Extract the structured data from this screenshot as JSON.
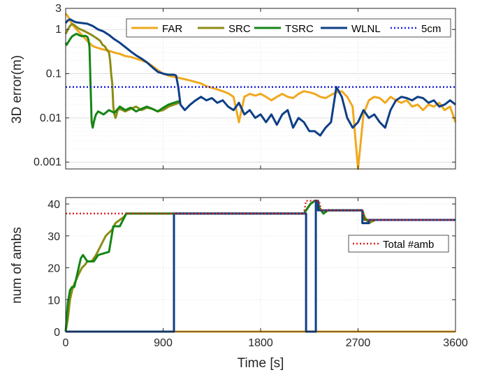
{
  "colors": {
    "FAR": "#f0a81e",
    "SRC": "#8c8c14",
    "TSRC": "#158515",
    "WLNL": "#0e3f86",
    "ref_5cm": "#1f1fe0",
    "total_amb": "#e02020"
  },
  "chart_data": [
    {
      "type": "line",
      "yscale": "log",
      "ylabel": "3D error(m)",
      "xlim": [
        0,
        3600
      ],
      "ylim": [
        0.0007,
        3
      ],
      "yticks": [
        0.001,
        0.01,
        0.1,
        1,
        3
      ],
      "ytick_labels": [
        "0.001",
        "0.01",
        "0.1",
        "1",
        "3"
      ],
      "xticks": [
        0,
        900,
        1800,
        2700,
        3600
      ],
      "grid": true,
      "legend": {
        "placement": "top",
        "orientation": "horizontal",
        "entries": [
          "FAR",
          "SRC",
          "TSRC",
          "WLNL",
          "5cm"
        ]
      },
      "series": [
        {
          "name": "FAR",
          "style": "solid",
          "x": [
            0,
            20,
            40,
            60,
            100,
            150,
            200,
            250,
            300,
            350,
            400,
            450,
            500,
            550,
            600,
            650,
            700,
            750,
            800,
            850,
            900,
            950,
            1000,
            1050,
            1100,
            1150,
            1200,
            1250,
            1300,
            1350,
            1400,
            1450,
            1500,
            1550,
            1600,
            1650,
            1700,
            1750,
            1800,
            1850,
            1900,
            1950,
            2000,
            2050,
            2100,
            2150,
            2200,
            2250,
            2300,
            2350,
            2400,
            2450,
            2500,
            2550,
            2600,
            2650,
            2700,
            2750,
            2800,
            2850,
            2900,
            2950,
            3000,
            3050,
            3100,
            3150,
            3200,
            3250,
            3300,
            3350,
            3400,
            3450,
            3500,
            3550,
            3600
          ],
          "y": [
            2.3,
            2.0,
            1.6,
            1.3,
            1.0,
            0.75,
            0.55,
            0.42,
            0.38,
            0.35,
            0.33,
            0.3,
            0.28,
            0.25,
            0.24,
            0.22,
            0.2,
            0.18,
            0.15,
            0.12,
            0.1,
            0.09,
            0.085,
            0.08,
            0.075,
            0.07,
            0.065,
            0.06,
            0.052,
            0.048,
            0.044,
            0.04,
            0.036,
            0.03,
            0.008,
            0.03,
            0.035,
            0.032,
            0.035,
            0.03,
            0.025,
            0.03,
            0.035,
            0.03,
            0.028,
            0.035,
            0.04,
            0.038,
            0.035,
            0.03,
            0.028,
            0.033,
            0.038,
            0.04,
            0.03,
            0.018,
            0.0007,
            0.012,
            0.025,
            0.03,
            0.028,
            0.022,
            0.03,
            0.025,
            0.022,
            0.025,
            0.018,
            0.02,
            0.015,
            0.02,
            0.018,
            0.022,
            0.015,
            0.018,
            0.008
          ]
        },
        {
          "name": "SRC",
          "style": "solid",
          "x": [
            0,
            20,
            40,
            60,
            80,
            120,
            160,
            200,
            240,
            280,
            300,
            320,
            340,
            360,
            380,
            400,
            410,
            420,
            430,
            440,
            450,
            460,
            470,
            480,
            500,
            550,
            600,
            650,
            700,
            750,
            800,
            850,
            900,
            950,
            1000,
            1050
          ],
          "y": [
            0.8,
            1.0,
            1.2,
            1.35,
            1.25,
            1.05,
            0.95,
            0.85,
            0.75,
            0.65,
            0.6,
            0.55,
            0.45,
            0.42,
            0.35,
            0.3,
            0.2,
            0.1,
            0.06,
            0.018,
            0.012,
            0.01,
            0.012,
            0.015,
            0.016,
            0.014,
            0.016,
            0.018,
            0.015,
            0.017,
            0.016,
            0.014,
            0.015,
            0.018,
            0.02,
            0.022
          ]
        },
        {
          "name": "TSRC",
          "style": "solid",
          "x": [
            0,
            10,
            20,
            40,
            60,
            80,
            100,
            120,
            150,
            180,
            200,
            210,
            220,
            230,
            240,
            250,
            260,
            270,
            280,
            300,
            350,
            400,
            450,
            500,
            550,
            600,
            650,
            700,
            750,
            800,
            850,
            900,
            950,
            1000,
            1050
          ],
          "y": [
            0.5,
            0.45,
            0.5,
            0.6,
            0.7,
            0.75,
            0.8,
            0.75,
            0.7,
            0.72,
            0.68,
            0.6,
            0.4,
            0.05,
            0.008,
            0.006,
            0.008,
            0.01,
            0.012,
            0.014,
            0.012,
            0.015,
            0.013,
            0.018,
            0.015,
            0.017,
            0.014,
            0.016,
            0.018,
            0.016,
            0.014,
            0.017,
            0.02,
            0.022,
            0.024
          ]
        },
        {
          "name": "WLNL",
          "style": "solid",
          "x": [
            0,
            20,
            40,
            60,
            80,
            100,
            150,
            200,
            250,
            300,
            350,
            400,
            450,
            500,
            550,
            600,
            650,
            700,
            750,
            800,
            850,
            900,
            950,
            1000,
            1020,
            1040,
            1060,
            1100,
            1150,
            1200,
            1250,
            1300,
            1350,
            1400,
            1450,
            1500,
            1550,
            1600,
            1650,
            1700,
            1750,
            1800,
            1850,
            1900,
            1950,
            2000,
            2050,
            2100,
            2150,
            2200,
            2250,
            2300,
            2350,
            2400,
            2450,
            2500,
            2550,
            2600,
            2650,
            2700,
            2750,
            2800,
            2850,
            2900,
            2950,
            3000,
            3050,
            3100,
            3150,
            3200,
            3250,
            3300,
            3350,
            3400,
            3450,
            3500,
            3550,
            3600
          ],
          "y": [
            1.4,
            1.6,
            1.7,
            1.6,
            1.5,
            1.45,
            1.4,
            1.35,
            1.2,
            1.0,
            0.9,
            0.75,
            0.6,
            0.5,
            0.4,
            0.32,
            0.26,
            0.22,
            0.18,
            0.14,
            0.11,
            0.1,
            0.095,
            0.095,
            0.09,
            0.05,
            0.02,
            0.015,
            0.02,
            0.025,
            0.03,
            0.025,
            0.028,
            0.022,
            0.025,
            0.018,
            0.015,
            0.022,
            0.012,
            0.015,
            0.01,
            0.012,
            0.008,
            0.012,
            0.007,
            0.012,
            0.015,
            0.006,
            0.01,
            0.008,
            0.005,
            0.005,
            0.004,
            0.006,
            0.008,
            0.05,
            0.03,
            0.01,
            0.006,
            0.008,
            0.015,
            0.01,
            0.012,
            0.008,
            0.006,
            0.015,
            0.025,
            0.03,
            0.028,
            0.025,
            0.03,
            0.028,
            0.022,
            0.025,
            0.018,
            0.02,
            0.025,
            0.02
          ]
        },
        {
          "name": "5cm",
          "style": "dotted",
          "x": [
            0,
            3600
          ],
          "y": [
            0.05,
            0.05
          ]
        }
      ]
    },
    {
      "type": "line",
      "ylabel": "num of ambs",
      "xlabel": "Time [s]",
      "xlim": [
        0,
        3600
      ],
      "ylim": [
        0,
        42
      ],
      "yticks": [
        0,
        10,
        20,
        30,
        40
      ],
      "xticks": [
        0,
        900,
        1800,
        2700,
        3600
      ],
      "grid": true,
      "legend": {
        "placement": "right",
        "entries": [
          "Total #amb"
        ]
      },
      "series": [
        {
          "name": "FAR",
          "x": [
            0,
            3600
          ],
          "y": [
            0,
            0
          ]
        },
        {
          "name": "SRC",
          "x": [
            0,
            20,
            40,
            60,
            80,
            120,
            150,
            180,
            200,
            240,
            280,
            310,
            340,
            370,
            400,
            430,
            460,
            500,
            540,
            560,
            600,
            700,
            900,
            1000,
            2200,
            2260,
            2300,
            2330,
            2340,
            2380,
            2420,
            2480,
            2740,
            2760,
            2800,
            2860,
            3600
          ],
          "y": [
            0,
            4,
            10,
            13,
            15,
            18,
            20,
            21,
            22,
            22,
            24,
            26,
            28,
            30,
            31,
            32,
            34,
            35,
            36,
            37,
            37,
            37,
            37,
            37,
            37,
            40,
            41,
            41,
            39,
            37,
            38,
            38,
            38,
            36,
            34,
            35,
            35
          ]
        },
        {
          "name": "TSRC",
          "x": [
            0,
            20,
            40,
            60,
            80,
            100,
            120,
            140,
            160,
            200,
            240,
            260,
            300,
            400,
            440,
            500,
            560,
            600,
            700,
            900,
            1000,
            2200,
            2260,
            2300,
            2330,
            2340,
            2380,
            2420,
            2480,
            2740,
            2760,
            2800,
            2860,
            3600
          ],
          "y": [
            0,
            9,
            13,
            14,
            14,
            17,
            20,
            23,
            24,
            22,
            22,
            22,
            24,
            25,
            33,
            33,
            37,
            37,
            37,
            37,
            37,
            37,
            40,
            41,
            41,
            39,
            37,
            38,
            38,
            38,
            35,
            35,
            35,
            35
          ]
        },
        {
          "name": "WLNL",
          "x": [
            0,
            1000,
            1000,
            1010,
            1010,
            2200,
            2200,
            2220,
            2220,
            2310,
            2310,
            2330,
            2330,
            2740,
            2740,
            2800,
            2800,
            3600
          ],
          "y": [
            0,
            0,
            37,
            37,
            37,
            37,
            37,
            37,
            0,
            0,
            41,
            41,
            38,
            38,
            34,
            34,
            35,
            35
          ]
        },
        {
          "name": "Total #amb",
          "style": "dotted",
          "x": [
            0,
            500,
            540,
            560,
            2200,
            2220,
            2340,
            2360,
            2420,
            2740,
            2760,
            3600
          ],
          "y": [
            37,
            37,
            37,
            37,
            37,
            41,
            41,
            38,
            38,
            38,
            35,
            35
          ]
        }
      ]
    }
  ]
}
